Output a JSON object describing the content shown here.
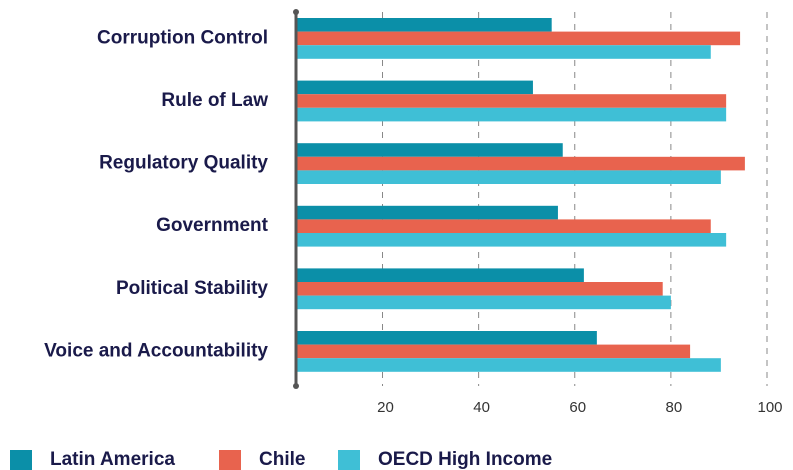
{
  "chart_data": {
    "type": "hbar",
    "categories": [
      "Corruption Control",
      "Rule of Law",
      "Regulatory Quality",
      "Government",
      "Political Stability",
      "Voice and Accountability"
    ],
    "series": [
      {
        "name": "Latin America",
        "color": "#0b8fa8",
        "values": [
          55.2,
          51.3,
          57.5,
          56.5,
          61.9,
          64.6
        ]
      },
      {
        "name": "Chile",
        "color": "#e8634e",
        "values": [
          94.4,
          91.5,
          95.4,
          88.3,
          78.3,
          84
        ]
      },
      {
        "name": "OECD High Income",
        "color": "#3fbfd6",
        "values": [
          88.3,
          91.5,
          90.4,
          91.5,
          80,
          90.4
        ]
      }
    ],
    "xlim": [
      2,
      100
    ],
    "xticks": [
      20,
      40,
      60,
      80,
      100
    ],
    "grid": true,
    "legend": "bottom"
  }
}
